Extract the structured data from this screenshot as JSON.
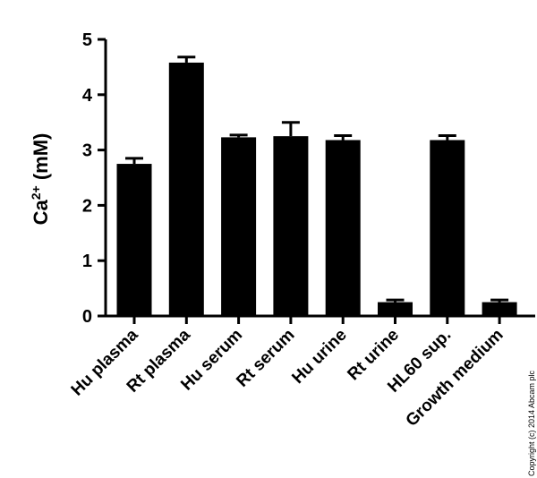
{
  "chart_data": {
    "type": "bar",
    "categories": [
      "Hu plasma",
      "Rt plasma",
      "Hu serum",
      "Rt serum",
      "Hu urine",
      "Rt urine",
      "HL60 sup.",
      "Growth medium"
    ],
    "values": [
      2.75,
      4.58,
      3.23,
      3.25,
      3.18,
      0.25,
      3.18,
      0.25
    ],
    "errors": [
      0.1,
      0.1,
      0.04,
      0.25,
      0.08,
      0.04,
      0.08,
      0.04
    ],
    "ylabel": {
      "base": "Ca",
      "sup": "2+",
      "unit": " (mM)"
    },
    "ylim": [
      0,
      5
    ],
    "yticks": [
      0,
      1,
      2,
      3,
      4,
      5
    ],
    "bar_color": "#000000",
    "grid": false
  },
  "copyright": "Copyright (c) 2014 Abcam plc"
}
